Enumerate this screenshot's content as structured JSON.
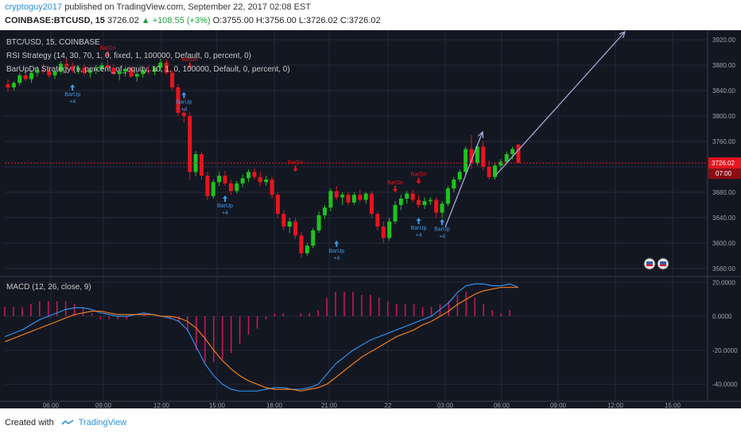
{
  "header": {
    "author": "cryptoguy2017",
    "published_text": "published on TradingView.com, September 22, 2017 02:08 EST",
    "symbol_line": "COINBASE:BTCUSD, 15",
    "last": "3726.02",
    "change": "▲ +108.55 (+3%)",
    "ohlc": "O:3755.00 H:3756.00 L:3726.02 C:3726.02"
  },
  "legend": {
    "line1": "BTC/USD, 15, COINBASE",
    "line2": "RSI Strategy (14, 30, 70, 1, 0, fixed, 1, 100000, Default, 0, percent, 0)",
    "line3": "BarUpDn Strategy (1, percent_of_equity, 10, 1, 0, 100000, Default, 0, percent, 0)",
    "macd": "MACD (12, 26, close, 9)"
  },
  "price_axis": {
    "ticks": [
      "3920.00",
      "3880.00",
      "3840.00",
      "3800.00",
      "3760.00",
      "3720.00",
      "3680.00",
      "3640.00",
      "3600.00",
      "3560.00"
    ],
    "last_price_label": "3726.02",
    "countdown_label": "07:00"
  },
  "macd_axis": {
    "ticks": [
      "20.0000",
      "0.0000",
      "-20.0000",
      "-40.0000"
    ]
  },
  "time_axis": {
    "ticks": [
      "06:00",
      "09:00",
      "12:00",
      "15:00",
      "18:00",
      "21:00",
      "22",
      "03:00",
      "06:00",
      "09:00",
      "12:00",
      "15:00"
    ]
  },
  "signals": {
    "bar_up": "BarUp",
    "bar_dn": "BarDn",
    "plus": "+4"
  },
  "footer": {
    "created": "Created with",
    "brand": "TradingView"
  },
  "colors": {
    "up": "#1ec31e",
    "down": "#e8141e",
    "macd_line": "#2e8ee8",
    "signal_line": "#f07c1e",
    "hist": "#c2185b",
    "arrow": "#a8a8d8",
    "background": "#131722"
  },
  "chart_data": [
    {
      "type": "candlestick",
      "title": "BTC/USD, 15, COINBASE",
      "ylim": [
        3550,
        3930
      ],
      "x_ticks": [
        "06:00",
        "09:00",
        "12:00",
        "15:00",
        "18:00",
        "21:00",
        "22",
        "03:00",
        "06:00",
        "09:00",
        "12:00",
        "15:00"
      ],
      "ohlc": [
        [
          3850,
          3858,
          3838,
          3845
        ],
        [
          3845,
          3855,
          3840,
          3852
        ],
        [
          3852,
          3868,
          3848,
          3864
        ],
        [
          3864,
          3870,
          3855,
          3858
        ],
        [
          3858,
          3872,
          3852,
          3868
        ],
        [
          3868,
          3878,
          3862,
          3872
        ],
        [
          3872,
          3882,
          3866,
          3870
        ],
        [
          3870,
          3876,
          3860,
          3864
        ],
        [
          3864,
          3874,
          3858,
          3870
        ],
        [
          3870,
          3886,
          3866,
          3882
        ],
        [
          3882,
          3890,
          3874,
          3878
        ],
        [
          3878,
          3884,
          3868,
          3872
        ],
        [
          3872,
          3880,
          3866,
          3876
        ],
        [
          3876,
          3882,
          3864,
          3868
        ],
        [
          3868,
          3876,
          3860,
          3872
        ],
        [
          3872,
          3880,
          3866,
          3874
        ],
        [
          3874,
          3884,
          3870,
          3880
        ],
        [
          3880,
          3888,
          3872,
          3876
        ],
        [
          3876,
          3882,
          3864,
          3866
        ],
        [
          3866,
          3874,
          3856,
          3870
        ],
        [
          3870,
          3878,
          3862,
          3874
        ],
        [
          3874,
          3878,
          3860,
          3862
        ],
        [
          3862,
          3870,
          3854,
          3866
        ],
        [
          3866,
          3876,
          3860,
          3872
        ],
        [
          3872,
          3880,
          3866,
          3870
        ],
        [
          3870,
          3878,
          3864,
          3876
        ],
        [
          3876,
          3890,
          3870,
          3884
        ],
        [
          3884,
          3890,
          3866,
          3868
        ],
        [
          3868,
          3872,
          3840,
          3845
        ],
        [
          3845,
          3850,
          3800,
          3805
        ],
        [
          3805,
          3812,
          3790,
          3800
        ],
        [
          3800,
          3806,
          3700,
          3712
        ],
        [
          3712,
          3745,
          3705,
          3740
        ],
        [
          3740,
          3744,
          3700,
          3706
        ],
        [
          3706,
          3712,
          3668,
          3674
        ],
        [
          3674,
          3700,
          3670,
          3696
        ],
        [
          3696,
          3712,
          3690,
          3706
        ],
        [
          3706,
          3714,
          3690,
          3694
        ],
        [
          3694,
          3700,
          3676,
          3682
        ],
        [
          3682,
          3698,
          3678,
          3694
        ],
        [
          3694,
          3708,
          3688,
          3702
        ],
        [
          3702,
          3716,
          3696,
          3712
        ],
        [
          3712,
          3718,
          3700,
          3704
        ],
        [
          3704,
          3712,
          3690,
          3696
        ],
        [
          3696,
          3706,
          3690,
          3700
        ],
        [
          3700,
          3704,
          3670,
          3676
        ],
        [
          3676,
          3680,
          3640,
          3646
        ],
        [
          3646,
          3652,
          3620,
          3626
        ],
        [
          3626,
          3640,
          3616,
          3634
        ],
        [
          3634,
          3640,
          3606,
          3612
        ],
        [
          3612,
          3618,
          3578,
          3584
        ],
        [
          3584,
          3600,
          3580,
          3596
        ],
        [
          3596,
          3624,
          3592,
          3620
        ],
        [
          3620,
          3650,
          3616,
          3644
        ],
        [
          3644,
          3660,
          3638,
          3656
        ],
        [
          3656,
          3686,
          3650,
          3682
        ],
        [
          3682,
          3690,
          3668,
          3672
        ],
        [
          3672,
          3680,
          3660,
          3676
        ],
        [
          3676,
          3680,
          3660,
          3664
        ],
        [
          3664,
          3680,
          3660,
          3676
        ],
        [
          3676,
          3684,
          3664,
          3668
        ],
        [
          3668,
          3680,
          3662,
          3678
        ],
        [
          3678,
          3682,
          3640,
          3646
        ],
        [
          3646,
          3650,
          3620,
          3626
        ],
        [
          3626,
          3634,
          3600,
          3608
        ],
        [
          3608,
          3640,
          3604,
          3634
        ],
        [
          3634,
          3666,
          3630,
          3660
        ],
        [
          3660,
          3676,
          3652,
          3670
        ],
        [
          3670,
          3682,
          3662,
          3678
        ],
        [
          3678,
          3684,
          3664,
          3668
        ],
        [
          3668,
          3676,
          3656,
          3660
        ],
        [
          3660,
          3672,
          3654,
          3666
        ],
        [
          3666,
          3672,
          3660,
          3668
        ],
        [
          3668,
          3672,
          3640,
          3648
        ],
        [
          3648,
          3666,
          3640,
          3662
        ],
        [
          3662,
          3690,
          3658,
          3686
        ],
        [
          3686,
          3704,
          3680,
          3700
        ],
        [
          3700,
          3716,
          3696,
          3712
        ],
        [
          3712,
          3752,
          3708,
          3748
        ],
        [
          3748,
          3770,
          3716,
          3726
        ],
        [
          3726,
          3756,
          3722,
          3752
        ],
        [
          3752,
          3760,
          3714,
          3720
        ],
        [
          3720,
          3730,
          3700,
          3704
        ],
        [
          3704,
          3726,
          3700,
          3722
        ],
        [
          3722,
          3732,
          3716,
          3728
        ],
        [
          3728,
          3744,
          3724,
          3740
        ],
        [
          3740,
          3752,
          3732,
          3748
        ],
        [
          3755,
          3756,
          3726,
          3726
        ]
      ]
    },
    {
      "type": "line",
      "title": "MACD (12, 26, close, 9)",
      "ylim": [
        -50,
        22
      ],
      "series": [
        {
          "name": "MACD",
          "values": [
            -12,
            -10,
            -8,
            -5,
            -2,
            0,
            2,
            4,
            5,
            5,
            4,
            2,
            1,
            0,
            0,
            1,
            2,
            1,
            0,
            -1,
            -3,
            -8,
            -18,
            -28,
            -35,
            -40,
            -43,
            -44,
            -44,
            -44,
            -43,
            -42,
            -42,
            -43,
            -43,
            -42,
            -40,
            -34,
            -28,
            -24,
            -20,
            -17,
            -14,
            -12,
            -10,
            -8,
            -6,
            -4,
            -2,
            0,
            4,
            8,
            14,
            18,
            19,
            19,
            18,
            18,
            19,
            17
          ]
        },
        {
          "name": "Signal",
          "values": [
            -15,
            -13,
            -11,
            -9,
            -7,
            -5,
            -3,
            -1,
            1,
            2,
            3,
            3,
            2,
            1,
            1,
            1,
            1,
            1,
            0,
            0,
            -1,
            -3,
            -7,
            -13,
            -20,
            -26,
            -31,
            -35,
            -38,
            -40,
            -42,
            -43,
            -43,
            -43,
            -44,
            -43,
            -42,
            -40,
            -36,
            -32,
            -28,
            -24,
            -21,
            -18,
            -15,
            -12,
            -10,
            -8,
            -5,
            -3,
            0,
            3,
            7,
            10,
            13,
            15,
            16,
            17,
            17,
            17
          ]
        }
      ]
    }
  ]
}
